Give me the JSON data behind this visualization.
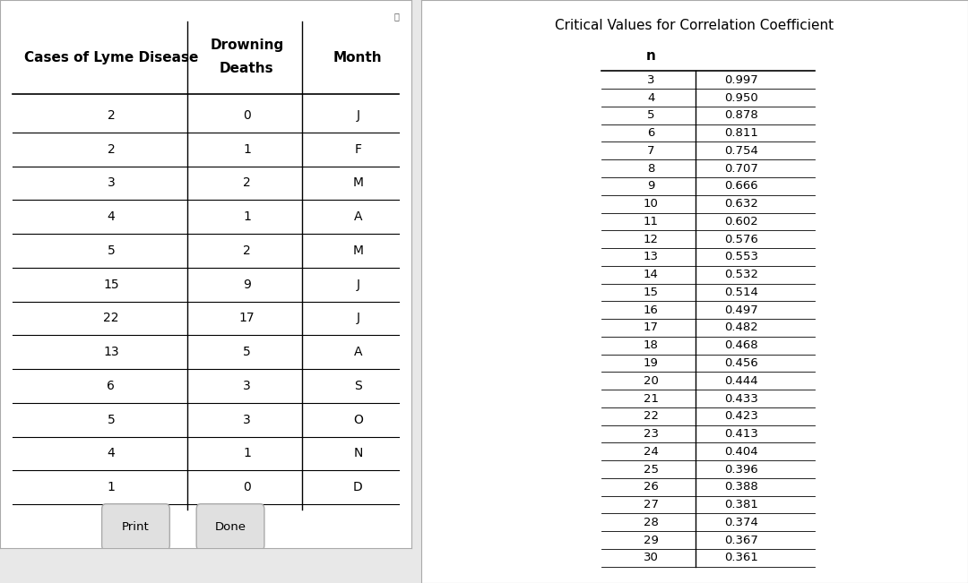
{
  "left_table": {
    "headers": [
      "Cases of Lyme Disease",
      "Drowning\nDeaths",
      "Month"
    ],
    "rows": [
      [
        2,
        0,
        "J"
      ],
      [
        2,
        1,
        "F"
      ],
      [
        3,
        2,
        "M"
      ],
      [
        4,
        1,
        "A"
      ],
      [
        5,
        2,
        "M"
      ],
      [
        15,
        9,
        "J"
      ],
      [
        22,
        17,
        "J"
      ],
      [
        13,
        5,
        "A"
      ],
      [
        6,
        3,
        "S"
      ],
      [
        5,
        3,
        "O"
      ],
      [
        4,
        1,
        "N"
      ],
      [
        1,
        0,
        "D"
      ]
    ]
  },
  "right_table": {
    "title": "Critical Values for Correlation Coefficient",
    "rows": [
      [
        3,
        "0.997"
      ],
      [
        4,
        "0.950"
      ],
      [
        5,
        "0.878"
      ],
      [
        6,
        "0.811"
      ],
      [
        7,
        "0.754"
      ],
      [
        8,
        "0.707"
      ],
      [
        9,
        "0.666"
      ],
      [
        10,
        "0.632"
      ],
      [
        11,
        "0.602"
      ],
      [
        12,
        "0.576"
      ],
      [
        13,
        "0.553"
      ],
      [
        14,
        "0.532"
      ],
      [
        15,
        "0.514"
      ],
      [
        16,
        "0.497"
      ],
      [
        17,
        "0.482"
      ],
      [
        18,
        "0.468"
      ],
      [
        19,
        "0.456"
      ],
      [
        20,
        "0.444"
      ],
      [
        21,
        "0.433"
      ],
      [
        22,
        "0.423"
      ],
      [
        23,
        "0.413"
      ],
      [
        24,
        "0.404"
      ],
      [
        25,
        "0.396"
      ],
      [
        26,
        "0.388"
      ],
      [
        27,
        "0.381"
      ],
      [
        28,
        "0.374"
      ],
      [
        29,
        "0.367"
      ],
      [
        30,
        "0.361"
      ]
    ]
  },
  "bg_color": "#e8e8e8",
  "panel_bg": "#ffffff",
  "font_size_header": 11,
  "font_size_data": 10,
  "button_labels": [
    "Print",
    "Done"
  ]
}
